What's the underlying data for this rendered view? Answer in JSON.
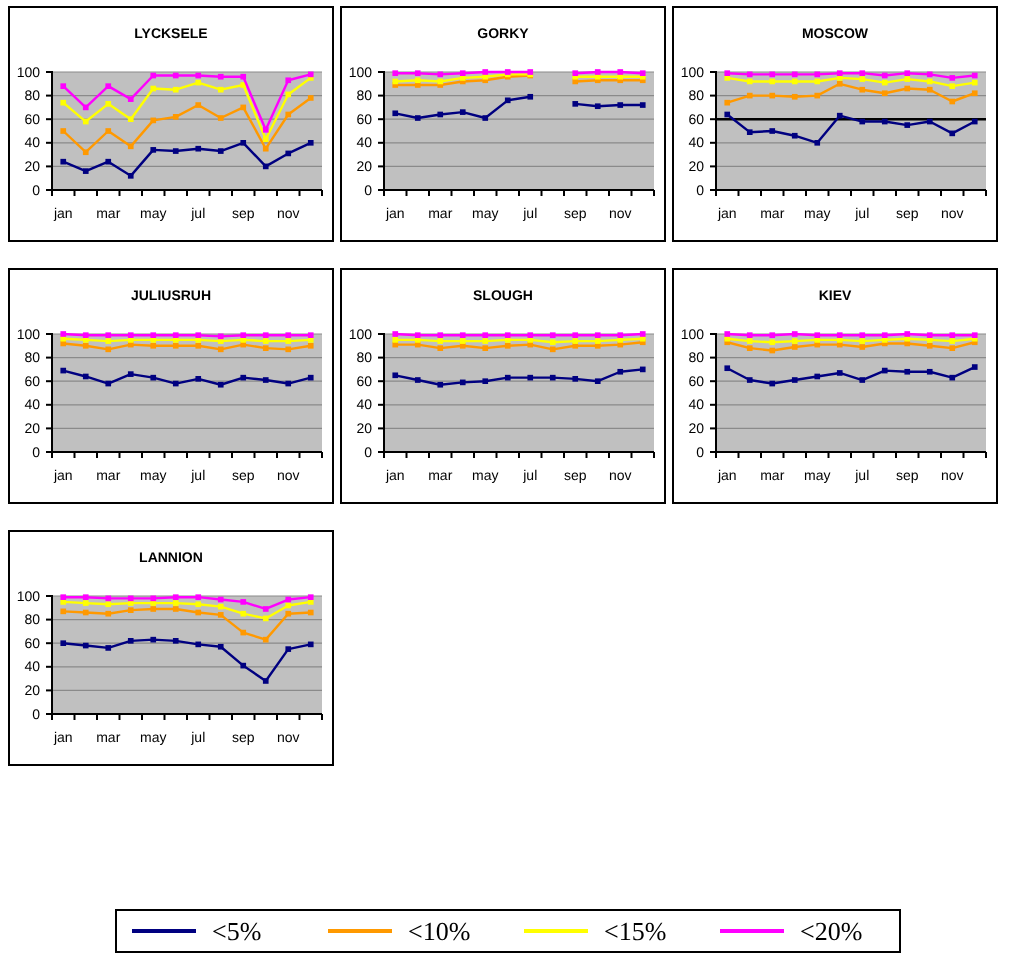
{
  "chart_data": [
    {
      "type": "line",
      "title": "LYCKSELE",
      "categories": [
        "jan",
        null,
        "mar",
        null,
        "may",
        null,
        "jul",
        null,
        "sep",
        null,
        "nov",
        null
      ],
      "ylim": [
        0,
        100
      ],
      "yticks": [
        0,
        20,
        40,
        60,
        80,
        100
      ],
      "grid": "y",
      "marker": "square",
      "legend": "bottom",
      "series": [
        {
          "name": "<5%",
          "color": "#000080",
          "values": [
            24,
            16,
            24,
            12,
            34,
            33,
            35,
            33,
            40,
            20,
            31,
            40
          ]
        },
        {
          "name": "<10%",
          "color": "#ff9900",
          "values": [
            50,
            32,
            50,
            37,
            59,
            62,
            72,
            61,
            70,
            35,
            64,
            78
          ]
        },
        {
          "name": "<15%",
          "color": "#ffff00",
          "values": [
            74,
            58,
            73,
            60,
            86,
            85,
            91,
            85,
            89,
            43,
            81,
            95
          ]
        },
        {
          "name": "<20%",
          "color": "#ff00ff",
          "values": [
            88,
            70,
            88,
            77,
            97,
            97,
            97,
            96,
            96,
            51,
            93,
            98
          ]
        }
      ]
    },
    {
      "type": "line",
      "title": "GORKY",
      "categories": [
        "jan",
        null,
        "mar",
        null,
        "may",
        null,
        "jul",
        null,
        "sep",
        null,
        "nov",
        null
      ],
      "ylim": [
        0,
        100
      ],
      "yticks": [
        0,
        20,
        40,
        60,
        80,
        100
      ],
      "grid": "y",
      "marker": "square",
      "series": [
        {
          "color": "#000080",
          "values": [
            65,
            61,
            64,
            66,
            61,
            76,
            79,
            null,
            73,
            71,
            72,
            72
          ]
        },
        {
          "color": "#ff9900",
          "values": [
            89,
            89,
            89,
            92,
            93,
            96,
            97,
            null,
            92,
            93,
            93,
            93
          ]
        },
        {
          "color": "#ffff00",
          "values": [
            92,
            93,
            92,
            95,
            96,
            98,
            98,
            null,
            96,
            96,
            96,
            96
          ]
        },
        {
          "color": "#ff00ff",
          "values": [
            99,
            99,
            98,
            99,
            100,
            100,
            100,
            null,
            99,
            100,
            100,
            99
          ]
        }
      ]
    },
    {
      "type": "line",
      "title": "MOSCOW",
      "categories": [
        "jan",
        null,
        "mar",
        null,
        "may",
        null,
        "jul",
        null,
        "sep",
        null,
        "nov",
        null
      ],
      "ylim": [
        0,
        100
      ],
      "yticks": [
        0,
        20,
        40,
        60,
        80,
        100
      ],
      "grid": "y",
      "marker": "square",
      "ref_lines": [
        {
          "axis": "y",
          "value": 60,
          "color": "#000000"
        }
      ],
      "series": [
        {
          "color": "#000080",
          "values": [
            64,
            49,
            50,
            46,
            40,
            63,
            58,
            58,
            55,
            58,
            48,
            58
          ]
        },
        {
          "color": "#ff9900",
          "values": [
            74,
            80,
            80,
            79,
            80,
            90,
            85,
            82,
            86,
            85,
            75,
            82
          ]
        },
        {
          "color": "#ffff00",
          "values": [
            95,
            92,
            92,
            92,
            92,
            95,
            94,
            91,
            94,
            92,
            88,
            91
          ]
        },
        {
          "color": "#ff00ff",
          "values": [
            99,
            98,
            98,
            98,
            98,
            99,
            99,
            97,
            99,
            98,
            95,
            97
          ]
        }
      ]
    },
    {
      "type": "line",
      "title": "JULIUSRUH",
      "categories": [
        "jan",
        null,
        "mar",
        null,
        "may",
        null,
        "jul",
        null,
        "sep",
        null,
        "nov",
        null
      ],
      "ylim": [
        0,
        100
      ],
      "yticks": [
        0,
        20,
        40,
        60,
        80,
        100
      ],
      "grid": "y",
      "marker": "square",
      "series": [
        {
          "color": "#000080",
          "values": [
            69,
            64,
            58,
            66,
            63,
            58,
            62,
            57,
            63,
            61,
            58,
            63
          ]
        },
        {
          "color": "#ff9900",
          "values": [
            92,
            90,
            87,
            91,
            90,
            90,
            90,
            87,
            91,
            88,
            87,
            90
          ]
        },
        {
          "color": "#ffff00",
          "values": [
            96,
            95,
            94,
            95,
            95,
            95,
            95,
            94,
            95,
            94,
            94,
            95
          ]
        },
        {
          "color": "#ff00ff",
          "values": [
            100,
            99,
            99,
            99,
            99,
            99,
            99,
            98,
            99,
            99,
            99,
            99
          ]
        }
      ]
    },
    {
      "type": "line",
      "title": "SLOUGH",
      "categories": [
        "jan",
        null,
        "mar",
        null,
        "may",
        null,
        "jul",
        null,
        "sep",
        null,
        "nov",
        null
      ],
      "ylim": [
        0,
        100
      ],
      "yticks": [
        0,
        20,
        40,
        60,
        80,
        100
      ],
      "grid": "y",
      "marker": "square",
      "series": [
        {
          "color": "#000080",
          "values": [
            65,
            61,
            57,
            59,
            60,
            63,
            63,
            63,
            62,
            60,
            68,
            70
          ]
        },
        {
          "color": "#ff9900",
          "values": [
            91,
            91,
            88,
            90,
            88,
            90,
            91,
            87,
            90,
            90,
            91,
            93
          ]
        },
        {
          "color": "#ffff00",
          "values": [
            95,
            95,
            94,
            94,
            94,
            95,
            95,
            93,
            94,
            94,
            95,
            96
          ]
        },
        {
          "color": "#ff00ff",
          "values": [
            100,
            99,
            99,
            99,
            99,
            99,
            99,
            99,
            99,
            99,
            99,
            100
          ]
        }
      ]
    },
    {
      "type": "line",
      "title": "KIEV",
      "categories": [
        "jan",
        null,
        "mar",
        null,
        "may",
        null,
        "jul",
        null,
        "sep",
        null,
        "nov",
        null
      ],
      "ylim": [
        0,
        100
      ],
      "yticks": [
        0,
        20,
        40,
        60,
        80,
        100
      ],
      "grid": "y",
      "marker": "square",
      "series": [
        {
          "color": "#000080",
          "values": [
            71,
            61,
            58,
            61,
            64,
            67,
            61,
            69,
            68,
            68,
            63,
            72
          ]
        },
        {
          "color": "#ff9900",
          "values": [
            93,
            88,
            86,
            89,
            91,
            91,
            89,
            92,
            92,
            90,
            88,
            93
          ]
        },
        {
          "color": "#ffff00",
          "values": [
            96,
            94,
            93,
            94,
            95,
            95,
            94,
            95,
            96,
            95,
            94,
            96
          ]
        },
        {
          "color": "#ff00ff",
          "values": [
            100,
            99,
            99,
            100,
            99,
            99,
            99,
            99,
            100,
            99,
            99,
            99
          ]
        }
      ]
    },
    {
      "type": "line",
      "title": "LANNION",
      "categories": [
        "jan",
        null,
        "mar",
        null,
        "may",
        null,
        "jul",
        null,
        "sep",
        null,
        "nov",
        null
      ],
      "ylim": [
        0,
        100
      ],
      "yticks": [
        0,
        20,
        40,
        60,
        80,
        100
      ],
      "grid": "y",
      "marker": "square",
      "series": [
        {
          "color": "#000080",
          "values": [
            60,
            58,
            56,
            62,
            63,
            62,
            59,
            57,
            41,
            28,
            55,
            59
          ]
        },
        {
          "color": "#ff9900",
          "values": [
            87,
            86,
            85,
            88,
            89,
            89,
            86,
            84,
            69,
            63,
            85,
            86
          ]
        },
        {
          "color": "#ffff00",
          "values": [
            95,
            94,
            93,
            94,
            94,
            94,
            93,
            91,
            85,
            81,
            92,
            95
          ]
        },
        {
          "color": "#ff00ff",
          "values": [
            99,
            99,
            98,
            98,
            98,
            99,
            99,
            97,
            95,
            89,
            97,
            99
          ]
        }
      ]
    }
  ]
}
